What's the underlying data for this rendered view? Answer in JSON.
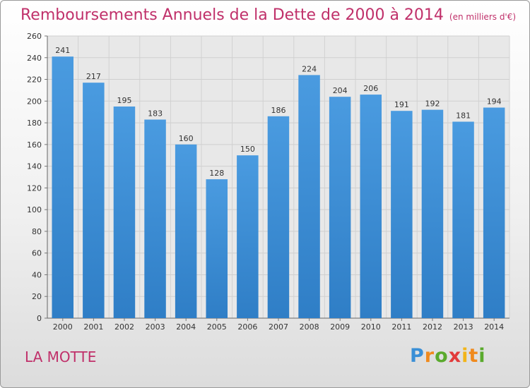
{
  "chart_data": {
    "type": "bar",
    "title": "Remboursements Annuels de la Dette de 2000 à 2014",
    "subtitle": "(en milliers d'€)",
    "categories": [
      "2000",
      "2001",
      "2002",
      "2003",
      "2004",
      "2005",
      "2006",
      "2007",
      "2008",
      "2009",
      "2010",
      "2011",
      "2012",
      "2013",
      "2014"
    ],
    "values": [
      241,
      217,
      195,
      183,
      160,
      128,
      150,
      186,
      224,
      204,
      206,
      191,
      192,
      181,
      194
    ],
    "ylim": [
      0,
      260
    ],
    "yticks": [
      0,
      20,
      40,
      60,
      80,
      100,
      120,
      140,
      160,
      180,
      200,
      220,
      240,
      260
    ],
    "grid": true,
    "bar_color": "#4a9be0",
    "bar_color_dark": "#2f7ec6"
  },
  "footer": {
    "place": "LA MOTTE",
    "logo_letters": [
      "P",
      "r",
      "o",
      "x",
      "i",
      "t",
      "i"
    ]
  },
  "colors": {
    "title": "#c0306a",
    "place": "#c0306a"
  }
}
